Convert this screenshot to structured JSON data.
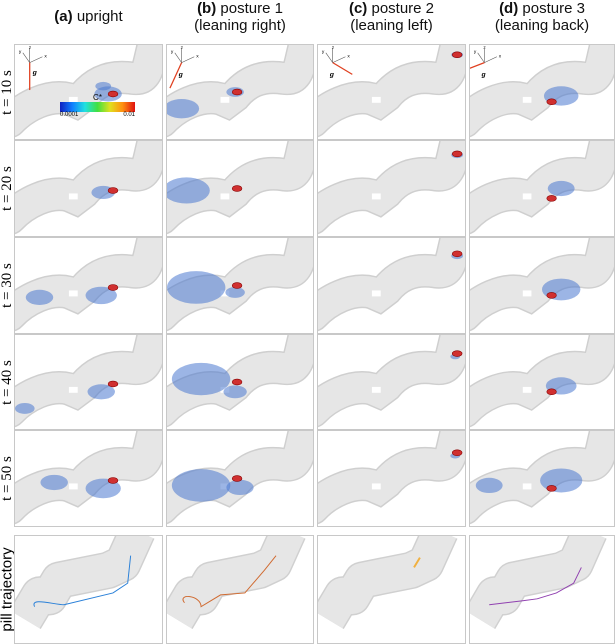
{
  "columns": [
    {
      "tag": "(a)",
      "title": "upright",
      "subtitle": ""
    },
    {
      "tag": "(b)",
      "title": "posture 1",
      "subtitle": "(leaning right)"
    },
    {
      "tag": "(c)",
      "title": "posture 2",
      "subtitle": "(leaning left)"
    },
    {
      "tag": "(d)",
      "title": "posture 3",
      "subtitle": "(leaning back)"
    }
  ],
  "rows": [
    "t = 10 s",
    "t = 20 s",
    "t = 30 s",
    "t = 40 s",
    "t = 50 s",
    "pill trajectory"
  ],
  "colorbar": {
    "label": "C*",
    "min": "0.0001",
    "max": "0.01"
  },
  "axes": {
    "x": "x",
    "y": "y",
    "z": "z",
    "g": "g"
  },
  "colors": {
    "tube": "#e6e6e6",
    "drug": "#4a78d0",
    "pill": "#d03030",
    "gravity": "#e04020",
    "traj": [
      "#2a80d8",
      "#d06a30",
      "#f0b040",
      "#9040b0"
    ]
  }
}
